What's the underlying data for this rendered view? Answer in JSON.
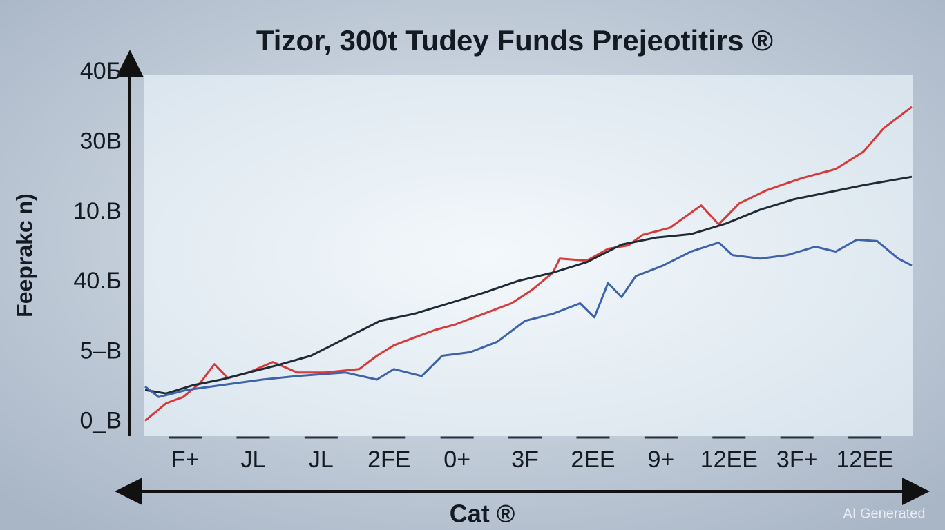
{
  "chart_data": {
    "type": "line",
    "title": "Tizor, 300t Tudey Funds Prejeotitirs ®",
    "y_label": "Feeprakc n)",
    "x_label": "Cat ®",
    "watermark": "AI Generated",
    "xlim": [
      -0.6,
      10.7
    ],
    "xticks": [
      {
        "value": 0,
        "label": "F+"
      },
      {
        "value": 1,
        "label": "JL"
      },
      {
        "value": 2,
        "label": "JL"
      },
      {
        "value": 3,
        "label": "2FE"
      },
      {
        "value": 4,
        "label": "0+"
      },
      {
        "value": 5,
        "label": "3F"
      },
      {
        "value": 6,
        "label": "2EE"
      },
      {
        "value": 7,
        "label": "9+"
      },
      {
        "value": 8,
        "label": "12EE"
      },
      {
        "value": 9,
        "label": "3F+"
      },
      {
        "value": 10,
        "label": "12EE"
      }
    ],
    "ylim": [
      -0.2,
      5.2
    ],
    "yticks": [
      {
        "value": 0,
        "label": "0_B"
      },
      {
        "value": 1,
        "label": "5–B"
      },
      {
        "value": 2,
        "label": "40.Б"
      },
      {
        "value": 3,
        "label": "10.B"
      },
      {
        "value": 4,
        "label": "30B"
      },
      {
        "value": 5,
        "label": "40Б"
      }
    ],
    "series": [
      {
        "color": "#d83a3a",
        "x": [
          -0.59,
          -0.28,
          -0.03,
          0.22,
          0.43,
          0.63,
          0.93,
          1.29,
          1.65,
          2.05,
          2.56,
          2.82,
          3.07,
          3.37,
          3.68,
          3.98,
          4.39,
          4.8,
          5.1,
          5.41,
          5.51,
          5.91,
          6.22,
          6.52,
          6.73,
          7.13,
          7.59,
          7.85,
          8.15,
          8.56,
          9.07,
          9.57,
          9.98,
          10.28,
          10.69
        ],
        "values": [
          0.02,
          0.27,
          0.36,
          0.56,
          0.83,
          0.63,
          0.71,
          0.86,
          0.71,
          0.71,
          0.76,
          0.95,
          1.1,
          1.21,
          1.32,
          1.4,
          1.55,
          1.7,
          1.89,
          2.14,
          2.34,
          2.31,
          2.48,
          2.53,
          2.68,
          2.78,
          3.1,
          2.83,
          3.13,
          3.32,
          3.49,
          3.62,
          3.87,
          4.21,
          4.51
        ]
      },
      {
        "color": "#1e2a36",
        "x": [
          -0.59,
          -0.28,
          0.12,
          0.53,
          0.93,
          1.34,
          1.85,
          2.36,
          2.87,
          3.37,
          3.88,
          4.39,
          4.9,
          5.41,
          5.91,
          6.42,
          6.93,
          7.44,
          7.95,
          8.46,
          8.96,
          9.47,
          9.98,
          10.69
        ],
        "values": [
          0.46,
          0.41,
          0.53,
          0.61,
          0.71,
          0.81,
          0.95,
          1.2,
          1.45,
          1.55,
          1.7,
          1.85,
          2.02,
          2.14,
          2.29,
          2.54,
          2.64,
          2.69,
          2.84,
          3.04,
          3.19,
          3.29,
          3.39,
          3.51
        ]
      },
      {
        "color": "#3f63a8",
        "x": [
          -0.59,
          -0.39,
          0.02,
          0.53,
          1.14,
          1.65,
          2.36,
          2.82,
          3.07,
          3.48,
          3.78,
          4.19,
          4.59,
          5.0,
          5.41,
          5.81,
          6.02,
          6.22,
          6.42,
          6.63,
          7.03,
          7.44,
          7.85,
          8.05,
          8.46,
          8.86,
          9.27,
          9.57,
          9.88,
          10.18,
          10.49,
          10.69
        ],
        "values": [
          0.51,
          0.36,
          0.46,
          0.53,
          0.61,
          0.66,
          0.71,
          0.61,
          0.76,
          0.66,
          0.95,
          1.0,
          1.15,
          1.45,
          1.55,
          1.7,
          1.5,
          1.99,
          1.79,
          2.09,
          2.24,
          2.44,
          2.57,
          2.39,
          2.34,
          2.39,
          2.51,
          2.44,
          2.61,
          2.59,
          2.34,
          2.24
        ]
      }
    ]
  }
}
